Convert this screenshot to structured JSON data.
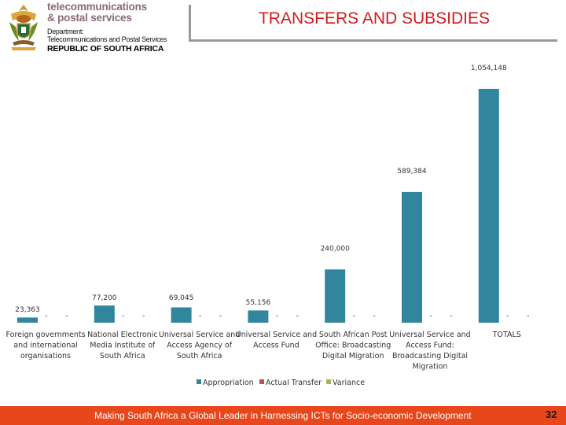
{
  "header": {
    "brand_line1": "telecommunications",
    "brand_line2": "& postal services",
    "dept_line1": "Department:",
    "dept_line2": "Telecommunications and Postal Services",
    "country": "REPUBLIC OF SOUTH AFRICA"
  },
  "slide": {
    "title": "TRANSFERS AND SUBSIDIES"
  },
  "footer": {
    "text": "Making South Africa a Global Leader in Harnessing ICTs for Socio-economic Development",
    "page": "32"
  },
  "colors": {
    "appropriation": "#31859c",
    "actual_transfer": "#c0504d",
    "variance": "#9bbb59",
    "footer": "#e8471c",
    "title": "#d21b1b"
  },
  "chart_data": {
    "type": "bar",
    "title": "",
    "xlabel": "",
    "ylabel": "",
    "ylim": [
      0,
      1100000
    ],
    "grid": false,
    "legend_position": "bottom",
    "categories": [
      "Foreign governments and international organisations",
      "National Electronic Media Institute of South Africa",
      "Universal Service and Access Agency of South Africa",
      "Universal Service and Access Fund",
      "South African Post Office: Broadcasting Digital Migration",
      "Universal Service and Access Fund: Broadcasting Digital Migration",
      "TOTALS"
    ],
    "category_lines": [
      [
        "Foreign governments",
        "and international",
        "organisations"
      ],
      [
        "National Electronic",
        "Media Institute of",
        "South Africa"
      ],
      [
        "Universal Service and",
        "Access Agency of",
        "South Africa"
      ],
      [
        "Universal Service and",
        "Access Fund"
      ],
      [
        "South African Post",
        "Office: Broadcasting",
        "Digital Migration"
      ],
      [
        "Universal Service and",
        "Access Fund:",
        "Broadcasting Digital",
        "Migration"
      ],
      [
        "TOTALS"
      ]
    ],
    "series": [
      {
        "name": "Appropriation",
        "values": [
          23363,
          77200,
          69045,
          55156,
          240000,
          589384,
          1054148
        ],
        "labels": [
          "23,363",
          "77,200",
          "69,045",
          "55,156",
          "240,000",
          "589,384",
          "1,054,148"
        ]
      },
      {
        "name": "Actual Transfer",
        "values": [
          0,
          0,
          0,
          0,
          0,
          0,
          0
        ],
        "labels": [
          "-",
          "-",
          "-",
          "-",
          "-",
          "-",
          "-"
        ]
      },
      {
        "name": "Variance",
        "values": [
          0,
          0,
          0,
          0,
          0,
          0,
          0
        ],
        "labels": [
          "-",
          "-",
          "-",
          "-",
          "-",
          "-",
          "-"
        ]
      }
    ]
  }
}
